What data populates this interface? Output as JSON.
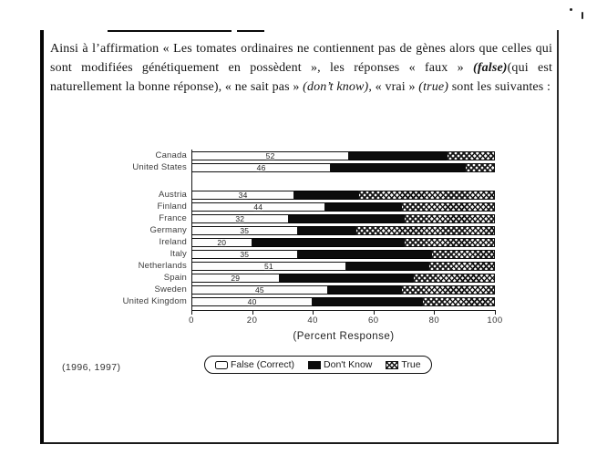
{
  "page": {
    "intro_segments": [
      {
        "t": "Ainsi à l’affirmation  « Les tomates ordinaires ne contiennent pas de gènes alors que celles qui sont modifiées génétiquement en possèdent », les réponses « faux » ",
        "s": "normal"
      },
      {
        "t": "(false)",
        "s": "bolditalic"
      },
      {
        "t": "(qui est naturellement la bonne réponse), « ne sait pas » ",
        "s": "normal"
      },
      {
        "t": "(don’t know)",
        "s": "italic"
      },
      {
        "t": ", « vrai » ",
        "s": "normal"
      },
      {
        "t": "(true)",
        "s": "italic"
      },
      {
        "t": " sont les  suivantes :",
        "s": "normal"
      }
    ]
  },
  "chart_data": {
    "type": "bar",
    "orientation": "horizontal",
    "stacked": true,
    "categories": [
      "Canada",
      "United States",
      "Austria",
      "Finland",
      "France",
      "Germany",
      "Ireland",
      "Italy",
      "Netherlands",
      "Spain",
      "Sweden",
      "United Kingdom"
    ],
    "group_break_index": 2,
    "series": [
      {
        "name": "False (Correct)",
        "values": [
          52,
          46,
          34,
          44,
          32,
          35,
          20,
          35,
          51,
          29,
          45,
          40
        ]
      },
      {
        "name": "Don't Know",
        "values": [
          32,
          44,
          21,
          25,
          38,
          19,
          50,
          44,
          27,
          44,
          24,
          36
        ]
      },
      {
        "name": "True",
        "values": [
          16,
          10,
          45,
          31,
          30,
          46,
          30,
          21,
          22,
          27,
          31,
          24
        ]
      }
    ],
    "bar_value_labels": [
      52,
      46,
      34,
      44,
      32,
      35,
      20,
      35,
      51,
      29,
      45,
      40
    ],
    "xlabel": "(Percent Response)",
    "x_ticks": [
      0,
      20,
      40,
      60,
      80,
      100
    ],
    "xlim": [
      0,
      100
    ],
    "legend": [
      "False (Correct)",
      "Don't Know",
      "True"
    ],
    "legend_position": "bottom",
    "source_note": "(1996, 1997)",
    "grid": false
  },
  "colors": {
    "ink": "#111111",
    "bar_false_fill": "#fdfdfd",
    "bar_dontknow_fill": "#0c0c0c",
    "bar_true_pattern": "crosshatch-black-on-white",
    "paper": "#ffffff"
  }
}
